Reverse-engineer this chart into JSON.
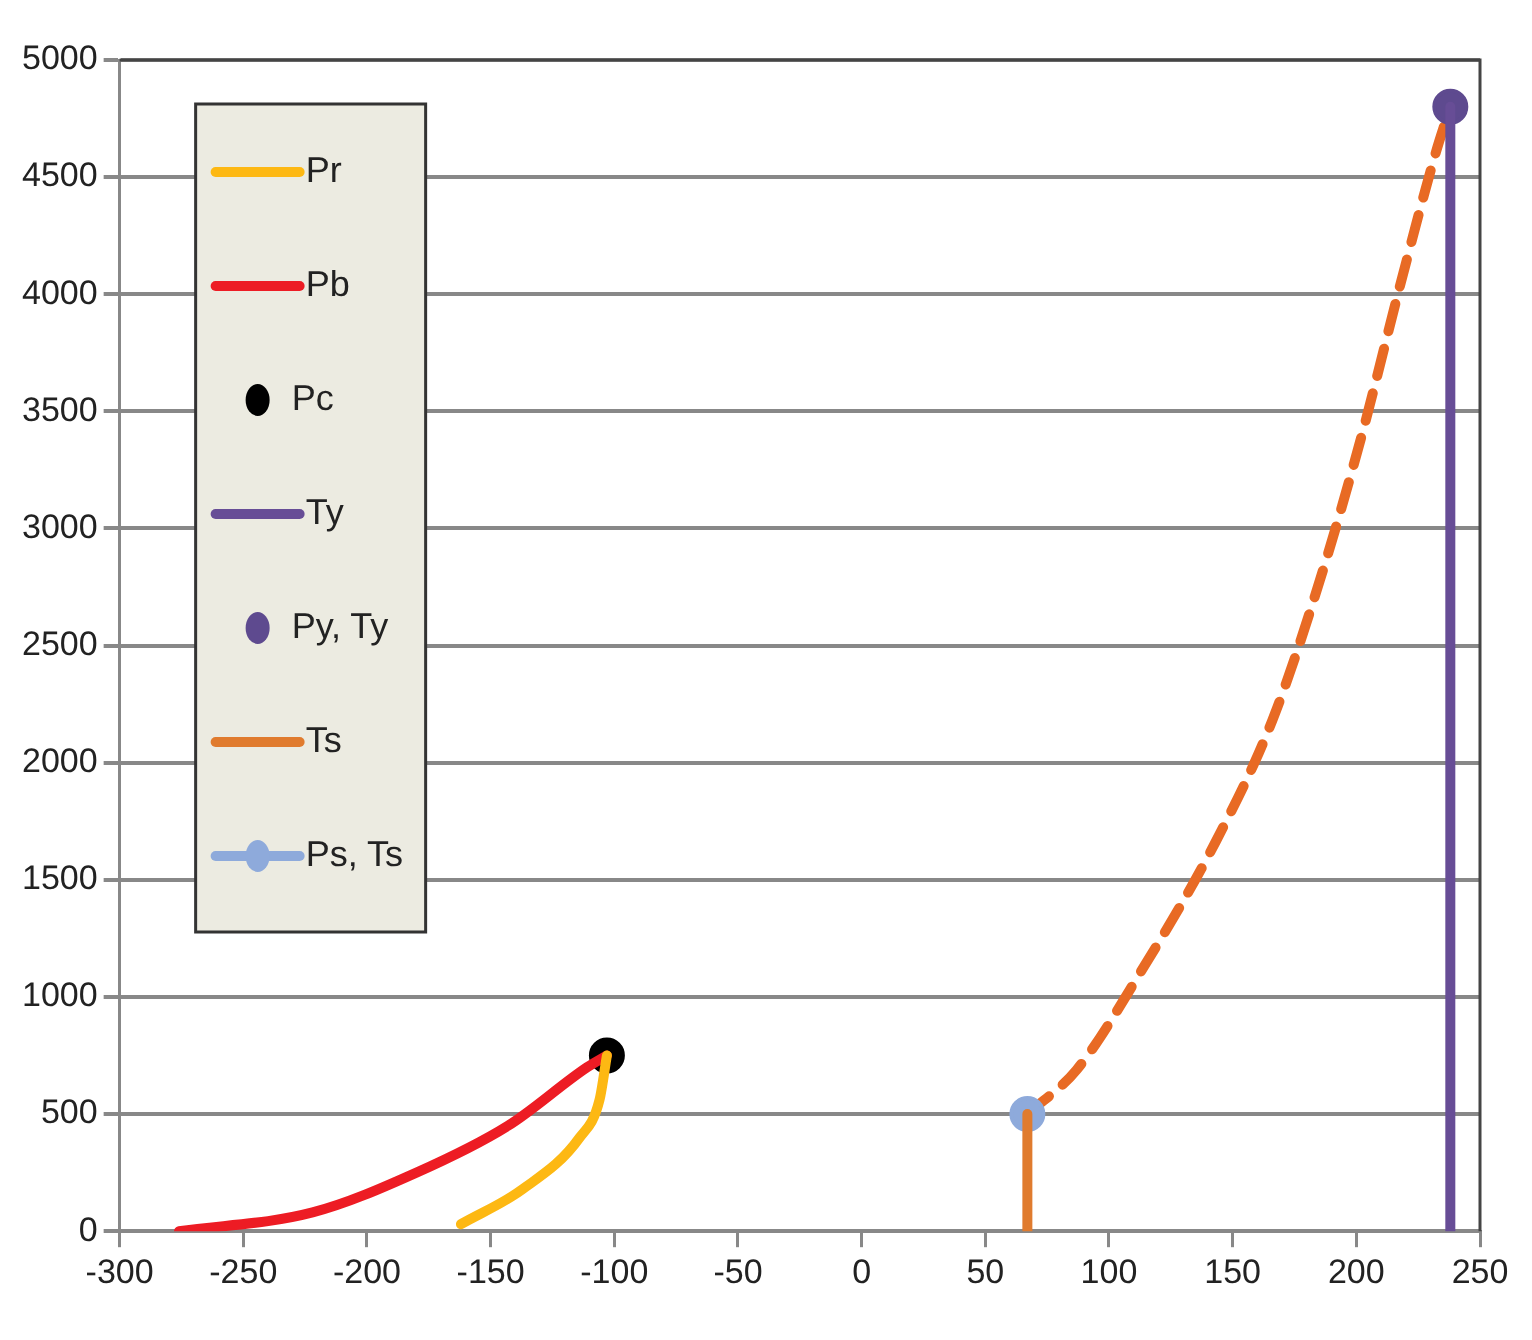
{
  "chart_data": {
    "type": "line",
    "xlim": [
      -300,
      250
    ],
    "xticks": [
      -300,
      -250,
      -200,
      -150,
      -100,
      -50,
      0,
      50,
      100,
      150,
      200,
      250
    ],
    "ylim": [
      0,
      5000
    ],
    "yticks": [
      0,
      500,
      1000,
      1500,
      2000,
      2500,
      3000,
      3500,
      4000,
      4500,
      5000
    ],
    "grid": "y",
    "legend": "top left",
    "marker": "none",
    "line_style": "solid",
    "series": [
      {
        "name": "Pr",
        "color": "#fdb813",
        "x": [
          -162,
          -137,
          -114,
          -106,
          -103
        ],
        "values": [
          30,
          180,
          400,
          560,
          750
        ]
      },
      {
        "name": "Pb",
        "color": "#ed1c24",
        "x": [
          -276,
          -222,
          -180,
          -143,
          -111,
          -103
        ],
        "values": [
          0,
          80,
          250,
          450,
          700,
          750
        ]
      },
      {
        "name": "Pc",
        "type": "scatter",
        "marker": "circle",
        "color": "#000000",
        "x": [
          -103
        ],
        "values": [
          750
        ]
      },
      {
        "name": "Ty",
        "color": "#674d96",
        "x": [
          238,
          238
        ],
        "values": [
          0,
          4800
        ]
      },
      {
        "name": "Py, Ty",
        "type": "scatter",
        "marker": "circle",
        "color": "#5e4a8f",
        "x": [
          238
        ],
        "values": [
          4800
        ]
      },
      {
        "name": "Ts",
        "color": "#e07b2e",
        "x": [
          67,
          67
        ],
        "values": [
          0,
          500
        ]
      },
      {
        "name": "Ps, Ts",
        "marker": "circle",
        "color": "#8eaadb",
        "x": [
          67
        ],
        "values": [
          500
        ]
      },
      {
        "line_style": "dashed",
        "color": "#e86a24",
        "x": [
          67,
          87,
          113,
          143,
          166,
          185,
          202,
          218,
          232,
          238
        ],
        "values": [
          500,
          690,
          1110,
          1660,
          2180,
          2770,
          3390,
          4050,
          4600,
          4800
        ]
      }
    ]
  }
}
